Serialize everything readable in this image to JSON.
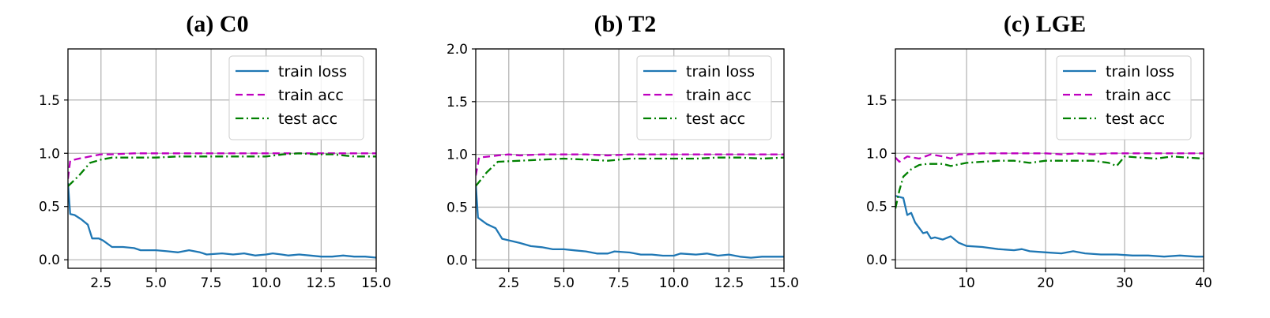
{
  "chart_data": [
    {
      "type": "line",
      "title": "(a) C0",
      "xlabel": "",
      "ylabel": "",
      "xlim": [
        1,
        15
      ],
      "ylim": [
        -0.08,
        1.98
      ],
      "xticks": [
        2.5,
        5.0,
        7.5,
        10.0,
        12.5,
        15.0
      ],
      "xtick_labels": [
        "2.5",
        "5.0",
        "7.5",
        "10.0",
        "12.5",
        "15.0"
      ],
      "yticks": [
        0.0,
        0.5,
        1.0,
        1.5
      ],
      "ytick_labels": [
        "0.0",
        "0.5",
        "1.0",
        "1.5"
      ],
      "grid": true,
      "legend": "top-right",
      "series": [
        {
          "name": "train loss",
          "color": "#1f77b4",
          "style": "solid",
          "points": [
            [
              1.0,
              0.72
            ],
            [
              1.1,
              0.43
            ],
            [
              1.3,
              0.42
            ],
            [
              1.6,
              0.38
            ],
            [
              1.9,
              0.33
            ],
            [
              2.1,
              0.2
            ],
            [
              2.4,
              0.2
            ],
            [
              2.6,
              0.18
            ],
            [
              3.0,
              0.12
            ],
            [
              3.5,
              0.12
            ],
            [
              4.0,
              0.11
            ],
            [
              4.3,
              0.09
            ],
            [
              5.0,
              0.09
            ],
            [
              5.5,
              0.08
            ],
            [
              6.0,
              0.07
            ],
            [
              6.5,
              0.09
            ],
            [
              7.0,
              0.07
            ],
            [
              7.3,
              0.05
            ],
            [
              8.0,
              0.06
            ],
            [
              8.5,
              0.05
            ],
            [
              9.0,
              0.06
            ],
            [
              9.5,
              0.04
            ],
            [
              10.0,
              0.05
            ],
            [
              10.3,
              0.06
            ],
            [
              10.7,
              0.05
            ],
            [
              11.0,
              0.04
            ],
            [
              11.5,
              0.05
            ],
            [
              12.0,
              0.04
            ],
            [
              12.5,
              0.03
            ],
            [
              13.0,
              0.03
            ],
            [
              13.5,
              0.04
            ],
            [
              14.0,
              0.03
            ],
            [
              14.5,
              0.03
            ],
            [
              15.0,
              0.02
            ]
          ]
        },
        {
          "name": "train acc",
          "color": "#bf00bf",
          "style": "dashed",
          "points": [
            [
              1.0,
              0.76
            ],
            [
              1.1,
              0.93
            ],
            [
              1.5,
              0.95
            ],
            [
              2.0,
              0.97
            ],
            [
              2.5,
              0.99
            ],
            [
              3.0,
              0.99
            ],
            [
              4.0,
              1.0
            ],
            [
              5.0,
              1.0
            ],
            [
              6.0,
              1.0
            ],
            [
              7.0,
              1.0
            ],
            [
              8.0,
              1.0
            ],
            [
              9.0,
              1.0
            ],
            [
              10.0,
              1.0
            ],
            [
              11.0,
              1.0
            ],
            [
              12.0,
              1.0
            ],
            [
              13.0,
              1.0
            ],
            [
              14.0,
              1.0
            ],
            [
              15.0,
              1.0
            ]
          ]
        },
        {
          "name": "test acc",
          "color": "#008000",
          "style": "dashdot",
          "points": [
            [
              1.0,
              0.69
            ],
            [
              1.5,
              0.79
            ],
            [
              2.0,
              0.91
            ],
            [
              2.5,
              0.94
            ],
            [
              3.0,
              0.96
            ],
            [
              4.0,
              0.96
            ],
            [
              5.0,
              0.96
            ],
            [
              6.0,
              0.97
            ],
            [
              7.0,
              0.97
            ],
            [
              8.0,
              0.97
            ],
            [
              9.0,
              0.97
            ],
            [
              10.0,
              0.97
            ],
            [
              10.8,
              0.99
            ],
            [
              11.5,
              1.0
            ],
            [
              12.3,
              0.99
            ],
            [
              13.0,
              0.99
            ],
            [
              14.0,
              0.97
            ],
            [
              15.0,
              0.97
            ]
          ]
        }
      ]
    },
    {
      "type": "line",
      "title": "(b) T2",
      "xlabel": "",
      "ylabel": "",
      "xlim": [
        1,
        15
      ],
      "ylim": [
        -0.08,
        2.0
      ],
      "xticks": [
        2.5,
        5.0,
        7.5,
        10.0,
        12.5,
        15.0
      ],
      "xtick_labels": [
        "2.5",
        "5.0",
        "7.5",
        "10.0",
        "12.5",
        "15.0"
      ],
      "yticks": [
        0.0,
        0.5,
        1.0,
        1.5,
        2.0
      ],
      "ytick_labels": [
        "0.0",
        "0.5",
        "1.0",
        "1.5",
        "2.0"
      ],
      "grid": true,
      "legend": "top-right",
      "series": [
        {
          "name": "train loss",
          "color": "#1f77b4",
          "style": "solid",
          "points": [
            [
              1.0,
              0.72
            ],
            [
              1.1,
              0.4
            ],
            [
              1.5,
              0.34
            ],
            [
              1.9,
              0.3
            ],
            [
              2.2,
              0.2
            ],
            [
              2.6,
              0.18
            ],
            [
              3.0,
              0.16
            ],
            [
              3.5,
              0.13
            ],
            [
              4.0,
              0.12
            ],
            [
              4.5,
              0.1
            ],
            [
              5.0,
              0.1
            ],
            [
              5.5,
              0.09
            ],
            [
              6.0,
              0.08
            ],
            [
              6.5,
              0.06
            ],
            [
              7.0,
              0.06
            ],
            [
              7.3,
              0.08
            ],
            [
              8.0,
              0.07
            ],
            [
              8.5,
              0.05
            ],
            [
              9.0,
              0.05
            ],
            [
              9.5,
              0.04
            ],
            [
              10.0,
              0.04
            ],
            [
              10.3,
              0.06
            ],
            [
              11.0,
              0.05
            ],
            [
              11.5,
              0.06
            ],
            [
              12.0,
              0.04
            ],
            [
              12.5,
              0.05
            ],
            [
              13.0,
              0.03
            ],
            [
              13.5,
              0.02
            ],
            [
              14.0,
              0.03
            ],
            [
              14.5,
              0.03
            ],
            [
              15.0,
              0.03
            ]
          ]
        },
        {
          "name": "train acc",
          "color": "#bf00bf",
          "style": "dashed",
          "points": [
            [
              1.0,
              0.8
            ],
            [
              1.15,
              0.97
            ],
            [
              1.6,
              0.98
            ],
            [
              2.0,
              0.99
            ],
            [
              2.5,
              1.0
            ],
            [
              3.0,
              0.99
            ],
            [
              4.0,
              1.0
            ],
            [
              5.0,
              1.0
            ],
            [
              6.0,
              1.0
            ],
            [
              7.0,
              0.99
            ],
            [
              8.0,
              1.0
            ],
            [
              9.0,
              1.0
            ],
            [
              10.0,
              1.0
            ],
            [
              11.0,
              1.0
            ],
            [
              12.0,
              1.0
            ],
            [
              13.0,
              1.0
            ],
            [
              14.0,
              1.0
            ],
            [
              15.0,
              1.0
            ]
          ]
        },
        {
          "name": "test acc",
          "color": "#008000",
          "style": "dashdot",
          "points": [
            [
              1.0,
              0.7
            ],
            [
              1.5,
              0.83
            ],
            [
              2.0,
              0.93
            ],
            [
              3.0,
              0.94
            ],
            [
              4.0,
              0.95
            ],
            [
              5.0,
              0.96
            ],
            [
              6.0,
              0.95
            ],
            [
              7.0,
              0.94
            ],
            [
              8.0,
              0.96
            ],
            [
              9.0,
              0.96
            ],
            [
              10.0,
              0.96
            ],
            [
              11.0,
              0.96
            ],
            [
              12.0,
              0.97
            ],
            [
              13.0,
              0.97
            ],
            [
              14.0,
              0.96
            ],
            [
              15.0,
              0.97
            ]
          ]
        }
      ]
    },
    {
      "type": "line",
      "title": "(c) LGE",
      "xlabel": "",
      "ylabel": "",
      "xlim": [
        1,
        40
      ],
      "ylim": [
        -0.08,
        1.98
      ],
      "xticks": [
        10,
        20,
        30,
        40
      ],
      "xtick_labels": [
        "10",
        "20",
        "30",
        "40"
      ],
      "yticks": [
        0.0,
        0.5,
        1.0,
        1.5
      ],
      "ytick_labels": [
        "0.0",
        "0.5",
        "1.0",
        "1.5"
      ],
      "grid": true,
      "legend": "top-right",
      "series": [
        {
          "name": "train loss",
          "color": "#1f77b4",
          "style": "solid",
          "points": [
            [
              1,
              0.6
            ],
            [
              2,
              0.58
            ],
            [
              2.5,
              0.42
            ],
            [
              3,
              0.44
            ],
            [
              3.5,
              0.35
            ],
            [
              4,
              0.3
            ],
            [
              4.5,
              0.25
            ],
            [
              5,
              0.26
            ],
            [
              5.5,
              0.2
            ],
            [
              6,
              0.21
            ],
            [
              7,
              0.19
            ],
            [
              8,
              0.22
            ],
            [
              9,
              0.16
            ],
            [
              10,
              0.13
            ],
            [
              12,
              0.12
            ],
            [
              14,
              0.1
            ],
            [
              16,
              0.09
            ],
            [
              17,
              0.1
            ],
            [
              18,
              0.08
            ],
            [
              20,
              0.07
            ],
            [
              22,
              0.06
            ],
            [
              23.5,
              0.08
            ],
            [
              25,
              0.06
            ],
            [
              27,
              0.05
            ],
            [
              29,
              0.05
            ],
            [
              31,
              0.04
            ],
            [
              33,
              0.04
            ],
            [
              35,
              0.03
            ],
            [
              37,
              0.04
            ],
            [
              39,
              0.03
            ],
            [
              40,
              0.03
            ]
          ]
        },
        {
          "name": "train acc",
          "color": "#bf00bf",
          "style": "dashed",
          "points": [
            [
              1,
              0.96
            ],
            [
              1.5,
              0.92
            ],
            [
              2.5,
              0.97
            ],
            [
              4,
              0.95
            ],
            [
              5.5,
              0.99
            ],
            [
              7,
              0.97
            ],
            [
              8,
              0.95
            ],
            [
              9,
              0.99
            ],
            [
              10,
              0.99
            ],
            [
              12,
              1.0
            ],
            [
              15,
              1.0
            ],
            [
              18,
              1.0
            ],
            [
              20,
              1.0
            ],
            [
              22,
              0.99
            ],
            [
              24,
              1.0
            ],
            [
              26,
              0.99
            ],
            [
              28,
              1.0
            ],
            [
              30,
              1.0
            ],
            [
              33,
              1.0
            ],
            [
              36,
              1.0
            ],
            [
              40,
              1.0
            ]
          ]
        },
        {
          "name": "test acc",
          "color": "#008000",
          "style": "dashdot",
          "points": [
            [
              1,
              0.48
            ],
            [
              1.5,
              0.65
            ],
            [
              2,
              0.78
            ],
            [
              3,
              0.85
            ],
            [
              4,
              0.89
            ],
            [
              5,
              0.9
            ],
            [
              7,
              0.9
            ],
            [
              8,
              0.88
            ],
            [
              10,
              0.91
            ],
            [
              12,
              0.92
            ],
            [
              14,
              0.93
            ],
            [
              16,
              0.93
            ],
            [
              18,
              0.91
            ],
            [
              20,
              0.93
            ],
            [
              23,
              0.93
            ],
            [
              26,
              0.93
            ],
            [
              28,
              0.91
            ],
            [
              29,
              0.88
            ],
            [
              30,
              0.97
            ],
            [
              32,
              0.96
            ],
            [
              34,
              0.95
            ],
            [
              36,
              0.97
            ],
            [
              38,
              0.96
            ],
            [
              40,
              0.95
            ]
          ]
        }
      ]
    }
  ]
}
